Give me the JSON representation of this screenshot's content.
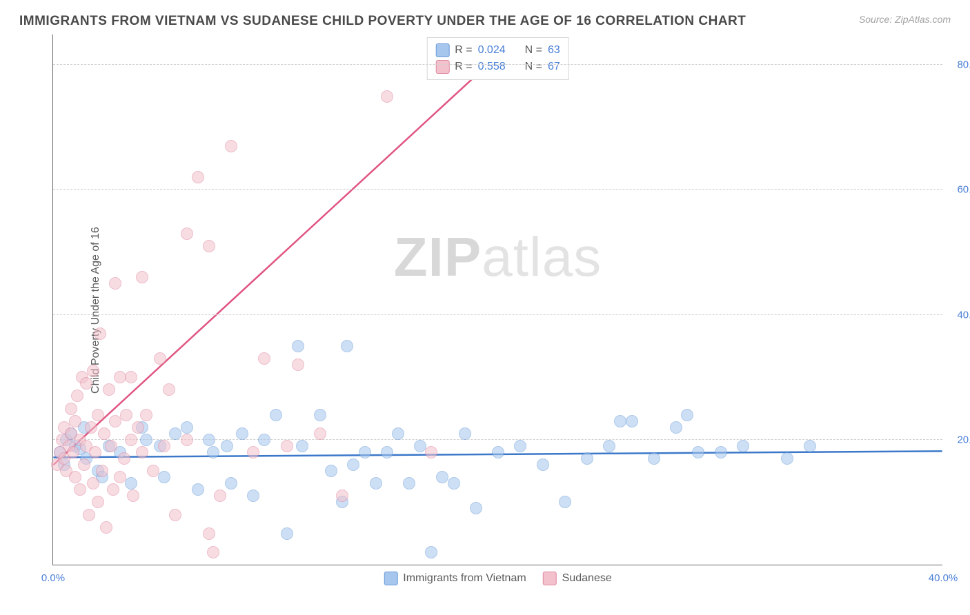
{
  "title": "IMMIGRANTS FROM VIETNAM VS SUDANESE CHILD POVERTY UNDER THE AGE OF 16 CORRELATION CHART",
  "source": "Source: ZipAtlas.com",
  "ylabel": "Child Poverty Under the Age of 16",
  "watermark_text": "ZIPatlas",
  "chart": {
    "type": "scatter",
    "xlim": [
      0,
      40
    ],
    "ylim": [
      0,
      85
    ],
    "x_ticks": [
      {
        "v": 0,
        "l": "0.0%"
      },
      {
        "v": 40,
        "l": "40.0%"
      }
    ],
    "y_ticks": [
      {
        "v": 20,
        "l": "20.0%"
      },
      {
        "v": 40,
        "l": "40.0%"
      },
      {
        "v": 60,
        "l": "60.0%"
      },
      {
        "v": 80,
        "l": "80.0%"
      }
    ],
    "grid_color": "#d0d0d0",
    "background_color": "#ffffff",
    "point_radius": 9,
    "series": [
      {
        "id": "vietnam",
        "label": "Immigrants from Vietnam",
        "fill": "#a6c6ed",
        "stroke": "#6a9cd8",
        "line_color": "#3b78c9",
        "r_label": "R =",
        "r_value": "0.024",
        "n_label": "N =",
        "n_value": "63",
        "trend": {
          "x1": 0,
          "y1": 17.2,
          "x2": 40,
          "y2": 18.2
        },
        "points": [
          [
            0.3,
            18
          ],
          [
            0.5,
            16
          ],
          [
            0.6,
            20
          ],
          [
            0.8,
            21
          ],
          [
            1.0,
            19
          ],
          [
            1.2,
            18.5
          ],
          [
            1.4,
            22
          ],
          [
            1.5,
            17
          ],
          [
            2.0,
            15
          ],
          [
            2.2,
            14
          ],
          [
            2.5,
            19
          ],
          [
            3.0,
            18
          ],
          [
            3.5,
            13
          ],
          [
            4.0,
            22
          ],
          [
            4.2,
            20
          ],
          [
            4.8,
            19
          ],
          [
            5.0,
            14
          ],
          [
            5.5,
            21
          ],
          [
            6.0,
            22
          ],
          [
            6.5,
            12
          ],
          [
            7.0,
            20
          ],
          [
            7.2,
            18
          ],
          [
            7.8,
            19
          ],
          [
            8.0,
            13
          ],
          [
            8.5,
            21
          ],
          [
            9.0,
            11
          ],
          [
            9.5,
            20
          ],
          [
            10.0,
            24
          ],
          [
            10.5,
            5
          ],
          [
            11.0,
            35
          ],
          [
            11.2,
            19
          ],
          [
            12.0,
            24
          ],
          [
            12.5,
            15
          ],
          [
            13.0,
            10
          ],
          [
            13.2,
            35
          ],
          [
            13.5,
            16
          ],
          [
            14.0,
            18
          ],
          [
            14.5,
            13
          ],
          [
            15.0,
            18
          ],
          [
            15.5,
            21
          ],
          [
            16.0,
            13
          ],
          [
            16.5,
            19
          ],
          [
            17.0,
            2
          ],
          [
            17.5,
            14
          ],
          [
            18.0,
            13
          ],
          [
            18.5,
            21
          ],
          [
            19.0,
            9
          ],
          [
            20.0,
            18
          ],
          [
            21.0,
            19
          ],
          [
            22.0,
            16
          ],
          [
            23.0,
            10
          ],
          [
            24.0,
            17
          ],
          [
            25.0,
            19
          ],
          [
            25.5,
            23
          ],
          [
            26.0,
            23
          ],
          [
            27.0,
            17
          ],
          [
            28.0,
            22
          ],
          [
            28.5,
            24
          ],
          [
            29.0,
            18
          ],
          [
            30.0,
            18
          ],
          [
            31.0,
            19
          ],
          [
            33.0,
            17
          ],
          [
            34.0,
            19
          ]
        ]
      },
      {
        "id": "sudanese",
        "label": "Sudanese",
        "fill": "#f2c1cc",
        "stroke": "#e088a0",
        "line_color": "#e05580",
        "r_label": "R =",
        "r_value": "0.558",
        "n_label": "N =",
        "n_value": "67",
        "trend": {
          "x1": 0,
          "y1": 16,
          "x2": 19.5,
          "y2": 80
        },
        "points": [
          [
            0.2,
            16
          ],
          [
            0.3,
            18
          ],
          [
            0.4,
            20
          ],
          [
            0.5,
            17
          ],
          [
            0.5,
            22
          ],
          [
            0.6,
            15
          ],
          [
            0.7,
            19
          ],
          [
            0.8,
            21
          ],
          [
            0.8,
            25
          ],
          [
            0.9,
            18
          ],
          [
            1.0,
            14
          ],
          [
            1.0,
            23
          ],
          [
            1.1,
            27
          ],
          [
            1.2,
            12
          ],
          [
            1.2,
            20
          ],
          [
            1.3,
            30
          ],
          [
            1.4,
            16
          ],
          [
            1.5,
            19
          ],
          [
            1.5,
            29
          ],
          [
            1.6,
            8
          ],
          [
            1.7,
            22
          ],
          [
            1.8,
            13
          ],
          [
            1.8,
            31
          ],
          [
            1.9,
            18
          ],
          [
            2.0,
            10
          ],
          [
            2.0,
            24
          ],
          [
            2.1,
            37
          ],
          [
            2.2,
            15
          ],
          [
            2.3,
            21
          ],
          [
            2.4,
            6
          ],
          [
            2.5,
            28
          ],
          [
            2.6,
            19
          ],
          [
            2.7,
            12
          ],
          [
            2.8,
            23
          ],
          [
            2.8,
            45
          ],
          [
            3.0,
            14
          ],
          [
            3.0,
            30
          ],
          [
            3.2,
            17
          ],
          [
            3.3,
            24
          ],
          [
            3.5,
            20
          ],
          [
            3.5,
            30
          ],
          [
            3.6,
            11
          ],
          [
            3.8,
            22
          ],
          [
            4.0,
            46
          ],
          [
            4.0,
            18
          ],
          [
            4.2,
            24
          ],
          [
            4.5,
            15
          ],
          [
            4.8,
            33
          ],
          [
            5.0,
            19
          ],
          [
            5.2,
            28
          ],
          [
            5.5,
            8
          ],
          [
            6.0,
            20
          ],
          [
            6.0,
            53
          ],
          [
            6.5,
            62
          ],
          [
            7.0,
            5
          ],
          [
            7.0,
            51
          ],
          [
            7.2,
            2
          ],
          [
            7.5,
            11
          ],
          [
            8.0,
            67
          ],
          [
            9.0,
            18
          ],
          [
            9.5,
            33
          ],
          [
            10.5,
            19
          ],
          [
            11.0,
            32
          ],
          [
            12.0,
            21
          ],
          [
            13.0,
            11
          ],
          [
            15.0,
            75
          ],
          [
            17.0,
            18
          ]
        ]
      }
    ]
  },
  "legend_series": [
    {
      "label": "Immigrants from Vietnam",
      "fill": "#a6c6ed",
      "stroke": "#6a9cd8"
    },
    {
      "label": "Sudanese",
      "fill": "#f2c1cc",
      "stroke": "#e088a0"
    }
  ]
}
